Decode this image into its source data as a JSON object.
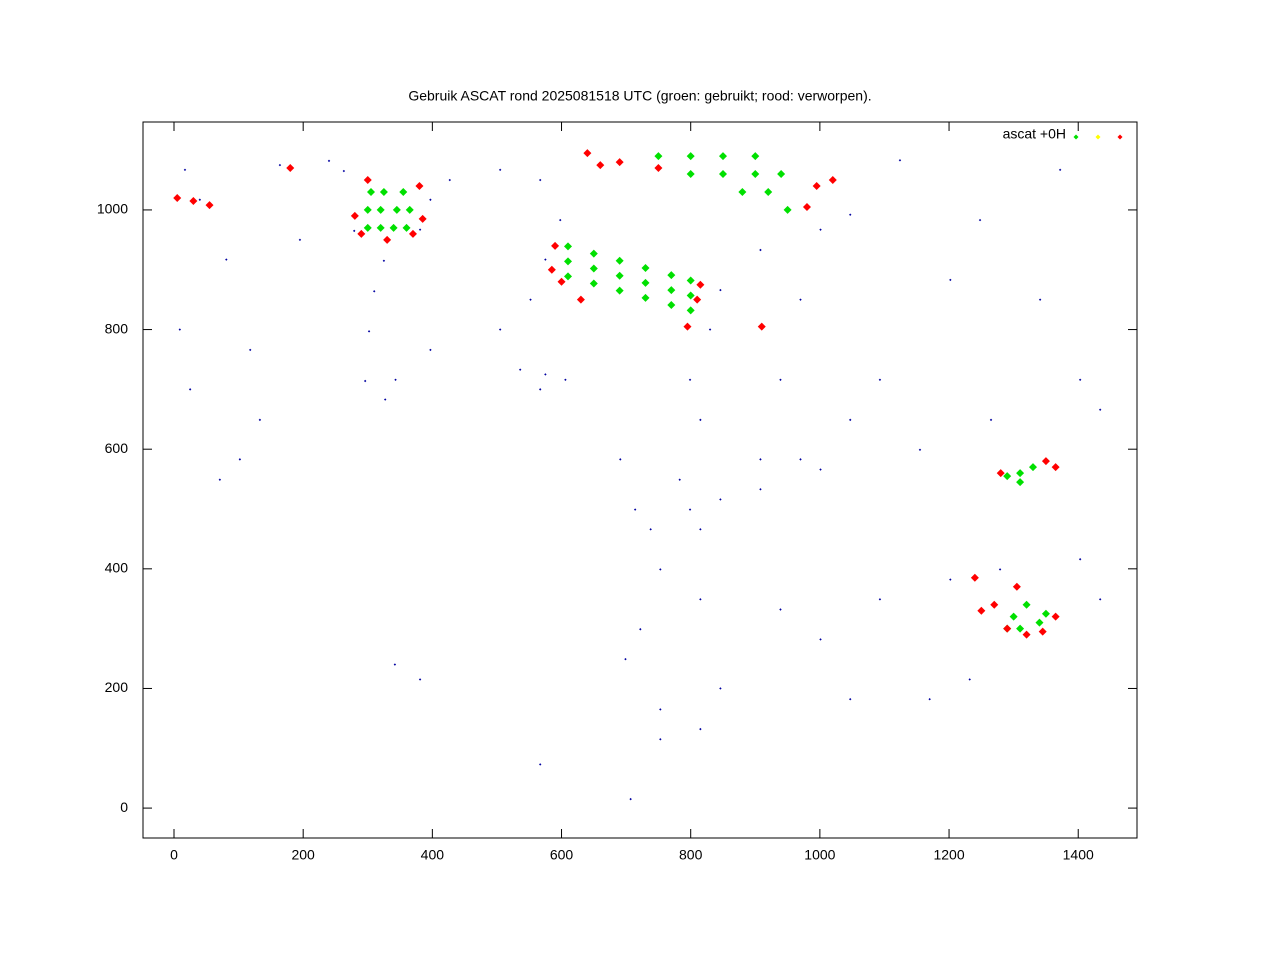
{
  "chart_data": {
    "type": "scatter",
    "title": "Gebruik ASCAT rond 2025081518 UTC (groen: gebruikt; rood: verworpen).",
    "xlim": [
      -48,
      1491
    ],
    "ylim": [
      -50,
      1147
    ],
    "xticks": [
      0,
      200,
      400,
      600,
      800,
      1000,
      1200,
      1400
    ],
    "yticks": [
      0,
      200,
      400,
      600,
      800,
      1000
    ],
    "legend": "top right",
    "series": [
      {
        "color": "#0000a0",
        "x": [
          296,
          302,
          310,
          325,
          279,
          263,
          240,
          381,
          397,
          427,
          505,
          567,
          598,
          575,
          552,
          505,
          397,
          343,
          327,
          40,
          81,
          118,
          133,
          71,
          17,
          164,
          195,
          9,
          102,
          25,
          536,
          575,
          606,
          567,
          799,
          815,
          830,
          846,
          908,
          1001,
          1047,
          970,
          939,
          908,
          970,
          1047,
          1093,
          691,
          714,
          738,
          799,
          783,
          846,
          908,
          1001,
          815,
          753,
          815,
          722,
          699,
          753,
          846,
          939,
          1001,
          1047,
          1170,
          1232,
          1093,
          1202,
          1279,
          1403,
          1434,
          1265,
          1403,
          1434,
          1341,
          1248,
          1372,
          1124,
          1202,
          1155,
          753,
          707,
          815,
          381,
          567,
          342
        ],
        "values": [
          714,
          797,
          864,
          915,
          965,
          1065,
          1082,
          967,
          1017,
          1050,
          1067,
          1050,
          983,
          917,
          850,
          800,
          766,
          716,
          683,
          1017,
          917,
          766,
          649,
          549,
          1067,
          1075,
          950,
          800,
          583,
          700,
          733,
          725,
          716,
          700,
          716,
          649,
          800,
          866,
          933,
          967,
          992,
          850,
          716,
          583,
          583,
          649,
          716,
          583,
          499,
          466,
          499,
          549,
          516,
          533,
          566,
          466,
          399,
          349,
          299,
          249,
          165,
          200,
          332,
          282,
          182,
          182,
          215,
          349,
          382,
          399,
          416,
          349,
          649,
          716,
          666,
          850,
          983,
          1067,
          1083,
          883,
          599,
          115,
          15,
          132,
          215,
          73,
          240
        ]
      },
      {
        "name": "ascat +0H",
        "color": "#00e000",
        "x": [
          300,
          320,
          340,
          360,
          300,
          320,
          345,
          365,
          305,
          325,
          355,
          610,
          610,
          610,
          650,
          650,
          650,
          690,
          690,
          690,
          730,
          730,
          730,
          770,
          770,
          770,
          800,
          800,
          800,
          750,
          800,
          850,
          900,
          800,
          850,
          900,
          940,
          880,
          920,
          950,
          1290,
          1310,
          1330,
          1310,
          1300,
          1320,
          1340,
          1310,
          1290,
          1350
        ],
        "values": [
          970,
          970,
          970,
          970,
          1000,
          1000,
          1000,
          1000,
          1030,
          1030,
          1030,
          939,
          914,
          889,
          927,
          902,
          877,
          915,
          890,
          865,
          903,
          878,
          853,
          891,
          866,
          841,
          882,
          857,
          832,
          1090,
          1090,
          1090,
          1090,
          1060,
          1060,
          1060,
          1060,
          1030,
          1030,
          1000,
          555,
          560,
          570,
          545,
          320,
          340,
          310,
          300,
          300,
          325
        ]
      },
      {
        "color": "#ffff00",
        "x": [],
        "values": []
      },
      {
        "color": "#ff0000",
        "x": [
          5,
          30,
          55,
          180,
          280,
          290,
          300,
          330,
          370,
          385,
          380,
          640,
          660,
          690,
          750,
          995,
          980,
          1020,
          590,
          585,
          600,
          630,
          795,
          810,
          815,
          910,
          1280,
          1350,
          1365,
          1240,
          1270,
          1250,
          1290,
          1320,
          1345,
          1305,
          1365
        ],
        "values": [
          1020,
          1015,
          1008,
          1070,
          990,
          960,
          1050,
          950,
          960,
          985,
          1040,
          1095,
          1075,
          1080,
          1070,
          1040,
          1005,
          1050,
          940,
          900,
          880,
          850,
          805,
          850,
          875,
          805,
          560,
          580,
          570,
          385,
          340,
          330,
          300,
          290,
          295,
          370,
          320
        ]
      }
    ]
  }
}
